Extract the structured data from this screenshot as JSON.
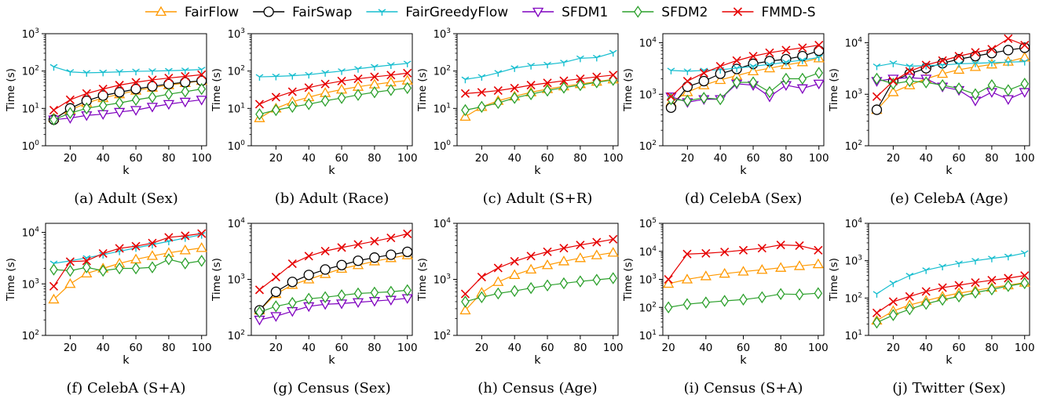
{
  "legend": {
    "placement": "top-center",
    "items": [
      {
        "name": "FairFlow",
        "color": "#ff9900",
        "marker": "triangle-up"
      },
      {
        "name": "FairSwap",
        "color": "#000000",
        "marker": "circle"
      },
      {
        "name": "FairGreedyFlow",
        "color": "#17becf",
        "marker": "tri-down"
      },
      {
        "name": "SFDM1",
        "color": "#7f00bf",
        "marker": "triangle-down"
      },
      {
        "name": "SFDM2",
        "color": "#2ca02c",
        "marker": "diamond"
      },
      {
        "name": "FMMD-S",
        "color": "#e60000",
        "marker": "x"
      }
    ]
  },
  "chart_data": [
    {
      "type": "line",
      "caption": "(a) Adult (Sex)",
      "xlabel": "k",
      "ylabel": "Time (s)",
      "yscale": "log",
      "ylim": [
        1,
        1000
      ],
      "xlim": [
        5,
        103
      ],
      "xticks": [
        20,
        40,
        60,
        80,
        100
      ],
      "yticks": [
        "10^0",
        "10^1",
        "10^2",
        "10^3"
      ],
      "x": [
        10,
        20,
        30,
        40,
        50,
        60,
        70,
        80,
        90,
        100
      ],
      "series": [
        {
          "name": "FairFlow",
          "values": [
            5.5,
            9,
            14,
            19,
            24,
            30,
            36,
            42,
            48,
            55
          ]
        },
        {
          "name": "FairSwap",
          "values": [
            5,
            10,
            16,
            22,
            27,
            33,
            39,
            45,
            50,
            55
          ]
        },
        {
          "name": "FairGreedyFlow",
          "values": [
            130,
            95,
            90,
            92,
            95,
            98,
            100,
            102,
            105,
            110
          ]
        },
        {
          "name": "SFDM1",
          "values": [
            5,
            5.5,
            6.5,
            7,
            8,
            9,
            11,
            13,
            15,
            17
          ]
        },
        {
          "name": "SFDM2",
          "values": [
            5,
            7.5,
            10,
            12,
            14,
            17,
            20,
            24,
            28,
            33
          ]
        },
        {
          "name": "FMMD-S",
          "values": [
            9,
            17,
            25,
            33,
            42,
            50,
            58,
            65,
            72,
            80
          ]
        }
      ]
    },
    {
      "type": "line",
      "caption": "(b) Adult (Race)",
      "xlabel": "k",
      "ylabel": "Time (s)",
      "yscale": "log",
      "ylim": [
        1,
        1000
      ],
      "xlim": [
        5,
        103
      ],
      "xticks": [
        20,
        40,
        60,
        80,
        100
      ],
      "yticks": [
        "10^0",
        "10^1",
        "10^2",
        "10^3"
      ],
      "x": [
        10,
        20,
        30,
        40,
        50,
        60,
        70,
        80,
        90,
        100
      ],
      "series": [
        {
          "name": "FairFlow",
          "values": [
            5.5,
            10,
            15,
            20,
            26,
            32,
            38,
            44,
            50,
            56
          ]
        },
        {
          "name": "FairGreedyFlow",
          "values": [
            70,
            72,
            75,
            80,
            90,
            100,
            115,
            130,
            145,
            160
          ]
        },
        {
          "name": "SFDM2",
          "values": [
            7,
            9,
            11,
            13,
            16,
            19,
            23,
            27,
            31,
            35
          ]
        },
        {
          "name": "FMMD-S",
          "values": [
            13,
            20,
            28,
            36,
            45,
            54,
            62,
            70,
            78,
            88
          ]
        }
      ]
    },
    {
      "type": "line",
      "caption": "(c) Adult (S+R)",
      "xlabel": "k",
      "ylabel": "Time (s)",
      "yscale": "log",
      "ylim": [
        1,
        1000
      ],
      "xlim": [
        5,
        103
      ],
      "xticks": [
        20,
        40,
        60,
        80,
        100
      ],
      "yticks": [
        "10^0",
        "10^1",
        "10^2",
        "10^3"
      ],
      "x": [
        10,
        20,
        30,
        40,
        50,
        60,
        70,
        80,
        90,
        100
      ],
      "series": [
        {
          "name": "FairFlow",
          "values": [
            6,
            11,
            16,
            21,
            27,
            33,
            39,
            45,
            52,
            60
          ]
        },
        {
          "name": "FairGreedyFlow",
          "values": [
            60,
            70,
            90,
            120,
            140,
            150,
            170,
            220,
            230,
            310
          ]
        },
        {
          "name": "SFDM2",
          "values": [
            9,
            11,
            14,
            19,
            24,
            30,
            36,
            42,
            50,
            58
          ]
        },
        {
          "name": "FMMD-S",
          "values": [
            25,
            27,
            30,
            35,
            42,
            48,
            55,
            62,
            70,
            78
          ]
        }
      ]
    },
    {
      "type": "line",
      "caption": "(d) CelebA (Sex)",
      "xlabel": "k",
      "ylabel": "Time (s)",
      "yscale": "log",
      "ylim": [
        100,
        15000
      ],
      "xlim": [
        5,
        103
      ],
      "xticks": [
        20,
        40,
        60,
        80,
        100
      ],
      "yticks": [
        "10^2",
        "10^3",
        "10^4"
      ],
      "x": [
        10,
        20,
        30,
        40,
        50,
        60,
        70,
        80,
        90,
        100
      ],
      "series": [
        {
          "name": "FairFlow",
          "values": [
            700,
            1100,
            1500,
            1900,
            2300,
            2800,
            3200,
            3700,
            4200,
            5000
          ]
        },
        {
          "name": "FairSwap",
          "values": [
            550,
            1400,
            1800,
            2500,
            3100,
            3900,
            4400,
            4800,
            5500,
            7000
          ]
        },
        {
          "name": "FairGreedyFlow",
          "values": [
            2900,
            2800,
            2900,
            3000,
            3200,
            3500,
            3800,
            4200,
            4600,
            5200
          ]
        },
        {
          "name": "SFDM1",
          "values": [
            900,
            700,
            800,
            800,
            1600,
            1500,
            900,
            1500,
            1300,
            1600
          ]
        },
        {
          "name": "SFDM2",
          "values": [
            800,
            750,
            850,
            800,
            1700,
            1700,
            1100,
            2000,
            2000,
            2600
          ]
        },
        {
          "name": "FMMD-S",
          "values": [
            900,
            1800,
            2600,
            3500,
            4500,
            5500,
            6400,
            7200,
            8000,
            9000
          ]
        }
      ]
    },
    {
      "type": "line",
      "caption": "(e) CelebA (Age)",
      "xlabel": "k",
      "ylabel": "Time (s)",
      "yscale": "log",
      "ylim": [
        100,
        15000
      ],
      "xlim": [
        5,
        103
      ],
      "xticks": [
        20,
        40,
        60,
        80,
        100
      ],
      "yticks": [
        "10^2",
        "10^3",
        "10^4"
      ],
      "x": [
        10,
        20,
        30,
        40,
        50,
        60,
        70,
        80,
        90,
        100
      ],
      "series": [
        {
          "name": "FairFlow",
          "values": [
            500,
            1100,
            1500,
            2000,
            2500,
            3000,
            3400,
            3800,
            4300,
            5200
          ]
        },
        {
          "name": "FairSwap",
          "values": [
            500,
            1800,
            2500,
            3200,
            4000,
            4800,
            5500,
            6300,
            7200,
            8000
          ]
        },
        {
          "name": "FairGreedyFlow",
          "values": [
            3500,
            4000,
            3500,
            3600,
            3700,
            3900,
            4000,
            4100,
            4200,
            4300
          ]
        },
        {
          "name": "SFDM1",
          "values": [
            1800,
            2000,
            2100,
            2000,
            1400,
            1200,
            750,
            1100,
            800,
            1100
          ]
        },
        {
          "name": "SFDM2",
          "values": [
            2000,
            1600,
            1800,
            1700,
            1500,
            1300,
            1000,
            1500,
            1200,
            1600
          ]
        },
        {
          "name": "FMMD-S",
          "values": [
            900,
            1800,
            2800,
            3700,
            4500,
            5500,
            6500,
            7500,
            12000,
            9000
          ]
        }
      ]
    },
    {
      "type": "line",
      "caption": "(f) CelebA (S+A)",
      "xlabel": "k",
      "ylabel": "Time (s)",
      "yscale": "log",
      "ylim": [
        100,
        15000
      ],
      "xlim": [
        5,
        103
      ],
      "xticks": [
        20,
        40,
        60,
        80,
        100
      ],
      "yticks": [
        "10^2",
        "10^3",
        "10^4"
      ],
      "x": [
        10,
        20,
        30,
        40,
        50,
        60,
        70,
        80,
        90,
        100
      ],
      "series": [
        {
          "name": "FairFlow",
          "values": [
            500,
            1000,
            1600,
            2000,
            2500,
            3000,
            3500,
            4000,
            4500,
            5000
          ]
        },
        {
          "name": "FairGreedyFlow",
          "values": [
            2500,
            2800,
            3200,
            3700,
            4300,
            5000,
            5800,
            6700,
            7800,
            9000
          ]
        },
        {
          "name": "SFDM2",
          "values": [
            1900,
            1800,
            2100,
            1800,
            2000,
            2000,
            2100,
            3000,
            2500,
            2800
          ]
        },
        {
          "name": "FMMD-S",
          "values": [
            900,
            2700,
            2800,
            3900,
            4900,
            5400,
            6200,
            8000,
            8600,
            9500
          ]
        }
      ]
    },
    {
      "type": "line",
      "caption": "(g) Census (Sex)",
      "xlabel": "k",
      "ylabel": "Time (s)",
      "yscale": "log",
      "ylim": [
        100,
        10000
      ],
      "xlim": [
        5,
        103
      ],
      "xticks": [
        20,
        40,
        60,
        80,
        100
      ],
      "yticks": [
        "10^2",
        "10^3",
        "10^4"
      ],
      "x": [
        10,
        20,
        30,
        40,
        50,
        60,
        70,
        80,
        90,
        100
      ],
      "series": [
        {
          "name": "FairFlow",
          "values": [
            280,
            550,
            800,
            1000,
            1250,
            1550,
            1800,
            2100,
            2400,
            2700
          ]
        },
        {
          "name": "FairSwap",
          "values": [
            280,
            600,
            900,
            1200,
            1500,
            1800,
            2150,
            2450,
            2750,
            3100
          ]
        },
        {
          "name": "SFDM1",
          "values": [
            190,
            220,
            270,
            330,
            360,
            370,
            390,
            410,
            430,
            460
          ]
        },
        {
          "name": "SFDM2",
          "values": [
            260,
            330,
            380,
            450,
            480,
            520,
            560,
            580,
            600,
            640
          ]
        },
        {
          "name": "FMMD-S",
          "values": [
            650,
            1100,
            1900,
            2600,
            3200,
            3700,
            4200,
            4800,
            5500,
            6500
          ]
        }
      ]
    },
    {
      "type": "line",
      "caption": "(h) Census (Age)",
      "xlabel": "k",
      "ylabel": "Time (s)",
      "yscale": "log",
      "ylim": [
        100,
        10000
      ],
      "xlim": [
        5,
        103
      ],
      "xticks": [
        20,
        40,
        60,
        80,
        100
      ],
      "yticks": [
        "10^2",
        "10^3",
        "10^4"
      ],
      "x": [
        10,
        20,
        30,
        40,
        50,
        60,
        70,
        80,
        90,
        100
      ],
      "series": [
        {
          "name": "FairFlow",
          "values": [
            280,
            580,
            900,
            1200,
            1500,
            1800,
            2100,
            2400,
            2700,
            3000
          ]
        },
        {
          "name": "SFDM2",
          "values": [
            400,
            480,
            560,
            620,
            700,
            780,
            850,
            920,
            980,
            1050
          ]
        },
        {
          "name": "FMMD-S",
          "values": [
            550,
            1100,
            1600,
            2100,
            2600,
            3100,
            3600,
            4100,
            4600,
            5200
          ]
        }
      ]
    },
    {
      "type": "line",
      "caption": "(i) Census (S+A)",
      "xlabel": "k",
      "ylabel": "Time (s)",
      "yscale": "log",
      "ylim": [
        10,
        100000
      ],
      "xlim": [
        17,
        103
      ],
      "xticks": [
        20,
        40,
        60,
        80,
        100
      ],
      "yticks": [
        "10^1",
        "10^2",
        "10^3",
        "10^4",
        "10^5"
      ],
      "x": [
        20,
        30,
        40,
        50,
        60,
        70,
        80,
        90,
        100
      ],
      "series": [
        {
          "name": "FairFlow",
          "values": [
            700,
            1000,
            1300,
            1600,
            1900,
            2200,
            2600,
            3000,
            3500
          ]
        },
        {
          "name": "SFDM2",
          "values": [
            100,
            130,
            150,
            170,
            190,
            230,
            300,
            290,
            320
          ]
        },
        {
          "name": "FMMD-S",
          "values": [
            1000,
            8000,
            8500,
            9500,
            11000,
            13000,
            17000,
            16000,
            11000
          ]
        }
      ]
    },
    {
      "type": "line",
      "caption": "(j) Twitter (Sex)",
      "xlabel": "k",
      "ylabel": "Time (s)",
      "yscale": "log",
      "ylim": [
        10,
        10000
      ],
      "xlim": [
        5,
        103
      ],
      "xticks": [
        20,
        40,
        60,
        80,
        100
      ],
      "yticks": [
        "10^1",
        "10^2",
        "10^3",
        "10^4"
      ],
      "x": [
        10,
        20,
        30,
        40,
        50,
        60,
        70,
        80,
        90,
        100
      ],
      "series": [
        {
          "name": "FairFlow",
          "values": [
            25,
            45,
            65,
            85,
            110,
            135,
            160,
            190,
            220,
            260
          ]
        },
        {
          "name": "FairGreedyFlow",
          "values": [
            130,
            250,
            400,
            560,
            700,
            850,
            1000,
            1150,
            1300,
            1600
          ]
        },
        {
          "name": "SFDM2",
          "values": [
            22,
            35,
            50,
            70,
            90,
            110,
            140,
            170,
            210,
            250
          ]
        },
        {
          "name": "FMMD-S",
          "values": [
            40,
            80,
            110,
            150,
            190,
            220,
            260,
            300,
            340,
            400
          ]
        }
      ]
    }
  ]
}
